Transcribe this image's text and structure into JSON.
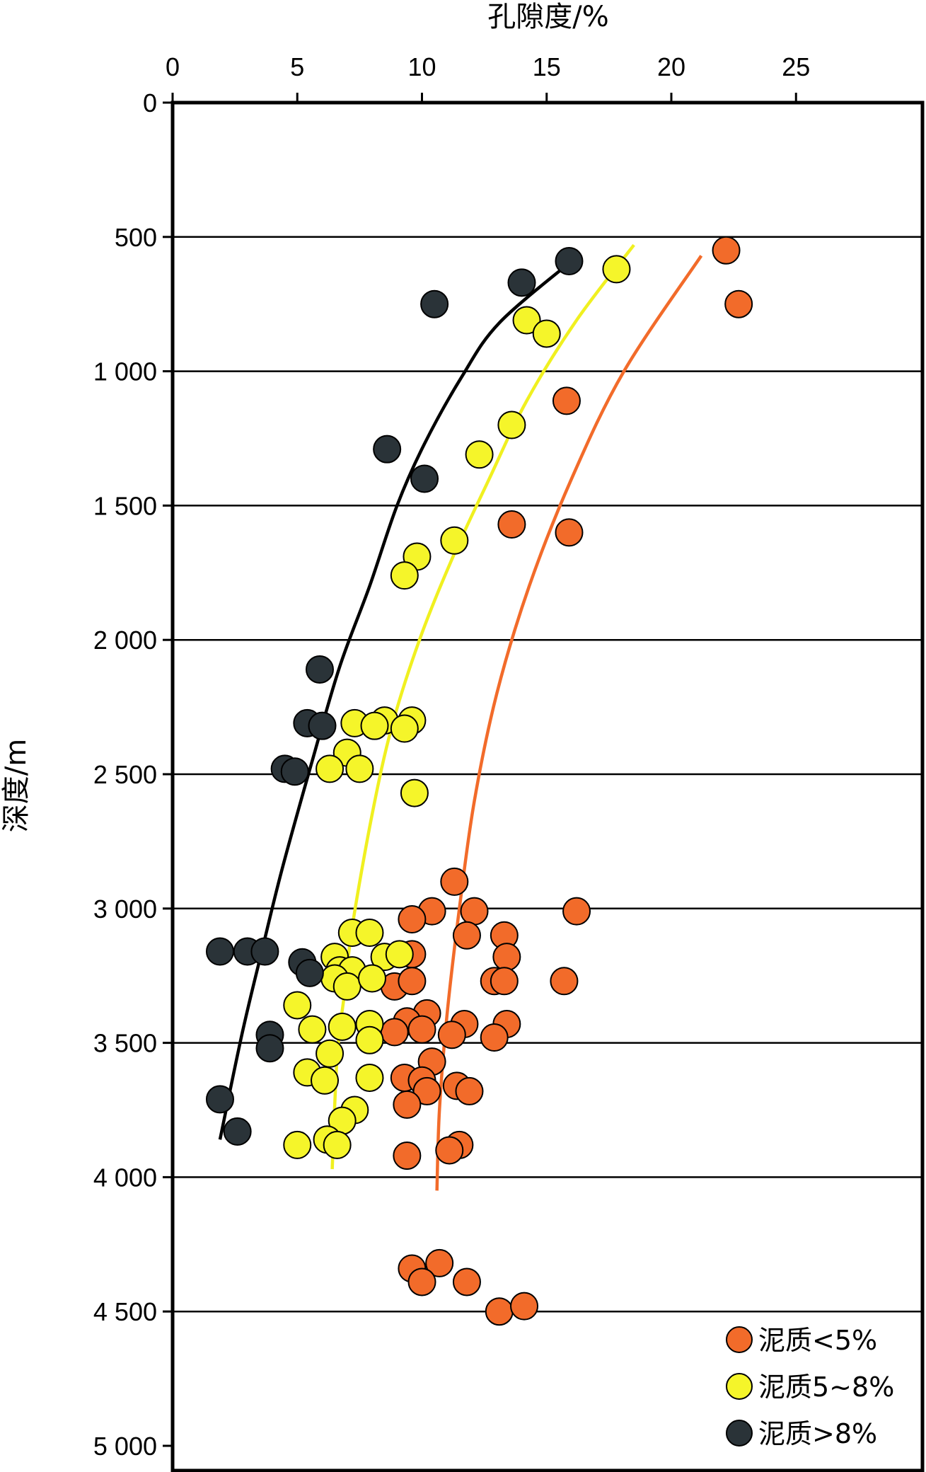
{
  "chart_data": {
    "type": "scatter",
    "xlabel": "孔隙度/%",
    "ylabel": "深度/m",
    "xlim": [
      0,
      30
    ],
    "ylim": [
      0,
      5000
    ],
    "y_inverted": true,
    "x_axis_position": "top",
    "x_ticks": [
      0,
      5,
      10,
      15,
      20,
      25
    ],
    "x_tick_labels": [
      "0",
      "5",
      "10",
      "15",
      "20",
      "25"
    ],
    "y_ticks": [
      0,
      500,
      1000,
      1500,
      2000,
      2500,
      3000,
      3500,
      4000,
      4500,
      5000
    ],
    "y_tick_labels": [
      "0",
      "500",
      "1 000",
      "1 500",
      "2 000",
      "2 500",
      "3 000",
      "3 500",
      "4 000",
      "4 500",
      "5 000"
    ],
    "grid": "horizontal",
    "legend_position": "bottom-right",
    "series": [
      {
        "name": "泥质<5%",
        "color": "#F26B2A",
        "points": [
          [
            22.2,
            550
          ],
          [
            22.7,
            750
          ],
          [
            15.8,
            1110
          ],
          [
            15.9,
            1600
          ],
          [
            13.6,
            1570
          ],
          [
            11.3,
            2900
          ],
          [
            10.4,
            3010
          ],
          [
            9.6,
            3040
          ],
          [
            12.1,
            3010
          ],
          [
            16.2,
            3010
          ],
          [
            11.8,
            3100
          ],
          [
            13.3,
            3100
          ],
          [
            9.6,
            3170
          ],
          [
            13.4,
            3180
          ],
          [
            15.7,
            3270
          ],
          [
            12.9,
            3270
          ],
          [
            13.3,
            3270
          ],
          [
            8.9,
            3290
          ],
          [
            9.6,
            3270
          ],
          [
            10.2,
            3390
          ],
          [
            9.4,
            3420
          ],
          [
            10.0,
            3450
          ],
          [
            11.7,
            3430
          ],
          [
            13.4,
            3430
          ],
          [
            8.9,
            3460
          ],
          [
            11.2,
            3470
          ],
          [
            12.9,
            3480
          ],
          [
            10.4,
            3570
          ],
          [
            9.3,
            3630
          ],
          [
            10.0,
            3640
          ],
          [
            10.2,
            3680
          ],
          [
            11.4,
            3660
          ],
          [
            11.9,
            3680
          ],
          [
            9.4,
            3730
          ],
          [
            11.5,
            3880
          ],
          [
            11.1,
            3900
          ],
          [
            9.4,
            3920
          ],
          [
            9.6,
            4340
          ],
          [
            10.7,
            4320
          ],
          [
            10.0,
            4390
          ],
          [
            11.8,
            4390
          ],
          [
            13.1,
            4500
          ],
          [
            14.1,
            4480
          ]
        ]
      },
      {
        "name": "泥质5~8%",
        "color": "#F5F52A",
        "points": [
          [
            17.8,
            620
          ],
          [
            14.2,
            810
          ],
          [
            15.0,
            860
          ],
          [
            13.6,
            1200
          ],
          [
            12.3,
            1310
          ],
          [
            11.3,
            1630
          ],
          [
            9.8,
            1690
          ],
          [
            9.3,
            1760
          ],
          [
            7.3,
            2310
          ],
          [
            8.5,
            2300
          ],
          [
            8.1,
            2320
          ],
          [
            9.6,
            2300
          ],
          [
            9.3,
            2330
          ],
          [
            7.0,
            2420
          ],
          [
            6.3,
            2480
          ],
          [
            7.5,
            2480
          ],
          [
            9.7,
            2570
          ],
          [
            7.2,
            3090
          ],
          [
            7.9,
            3090
          ],
          [
            6.5,
            3180
          ],
          [
            8.5,
            3180
          ],
          [
            9.1,
            3170
          ],
          [
            6.7,
            3230
          ],
          [
            7.2,
            3230
          ],
          [
            6.5,
            3260
          ],
          [
            7.0,
            3290
          ],
          [
            8.0,
            3260
          ],
          [
            5.0,
            3360
          ],
          [
            5.6,
            3450
          ],
          [
            6.8,
            3440
          ],
          [
            7.9,
            3430
          ],
          [
            7.9,
            3490
          ],
          [
            6.3,
            3540
          ],
          [
            5.4,
            3610
          ],
          [
            6.1,
            3640
          ],
          [
            7.9,
            3630
          ],
          [
            7.3,
            3750
          ],
          [
            6.8,
            3790
          ],
          [
            6.2,
            3860
          ],
          [
            5.0,
            3880
          ],
          [
            6.6,
            3880
          ]
        ]
      },
      {
        "name": "泥质>8%",
        "color": "#2A3338",
        "points": [
          [
            15.9,
            590
          ],
          [
            14.0,
            670
          ],
          [
            10.5,
            750
          ],
          [
            8.6,
            1290
          ],
          [
            10.1,
            1400
          ],
          [
            5.9,
            2110
          ],
          [
            5.4,
            2310
          ],
          [
            6.0,
            2320
          ],
          [
            4.5,
            2480
          ],
          [
            4.9,
            2490
          ],
          [
            1.9,
            3160
          ],
          [
            3.0,
            3160
          ],
          [
            3.7,
            3160
          ],
          [
            5.2,
            3200
          ],
          [
            5.5,
            3240
          ],
          [
            3.9,
            3470
          ],
          [
            3.9,
            3520
          ],
          [
            1.9,
            3710
          ],
          [
            2.6,
            3830
          ]
        ]
      }
    ],
    "trend_lines": [
      {
        "color": "#000000",
        "points": [
          [
            16.0,
            590
          ],
          [
            13.1,
            820
          ],
          [
            11.6,
            1020
          ],
          [
            10.1,
            1270
          ],
          [
            9.0,
            1500
          ],
          [
            7.9,
            1800
          ],
          [
            6.7,
            2100
          ],
          [
            5.6,
            2450
          ],
          [
            4.4,
            2850
          ],
          [
            3.6,
            3150
          ],
          [
            2.8,
            3460
          ],
          [
            1.9,
            3860
          ]
        ]
      },
      {
        "color": "#F0F020",
        "points": [
          [
            18.5,
            530
          ],
          [
            16.2,
            810
          ],
          [
            14.2,
            1110
          ],
          [
            12.7,
            1400
          ],
          [
            11.2,
            1700
          ],
          [
            9.9,
            2000
          ],
          [
            8.8,
            2320
          ],
          [
            8.0,
            2650
          ],
          [
            7.2,
            3070
          ],
          [
            6.9,
            3310
          ],
          [
            6.6,
            3550
          ],
          [
            6.4,
            3970
          ]
        ]
      },
      {
        "color": "#F26B2A",
        "points": [
          [
            21.2,
            570
          ],
          [
            18.1,
            1000
          ],
          [
            16.0,
            1400
          ],
          [
            14.3,
            1800
          ],
          [
            13.0,
            2200
          ],
          [
            12.1,
            2600
          ],
          [
            11.5,
            3000
          ],
          [
            11.0,
            3400
          ],
          [
            10.7,
            3750
          ],
          [
            10.6,
            4050
          ]
        ]
      }
    ]
  }
}
